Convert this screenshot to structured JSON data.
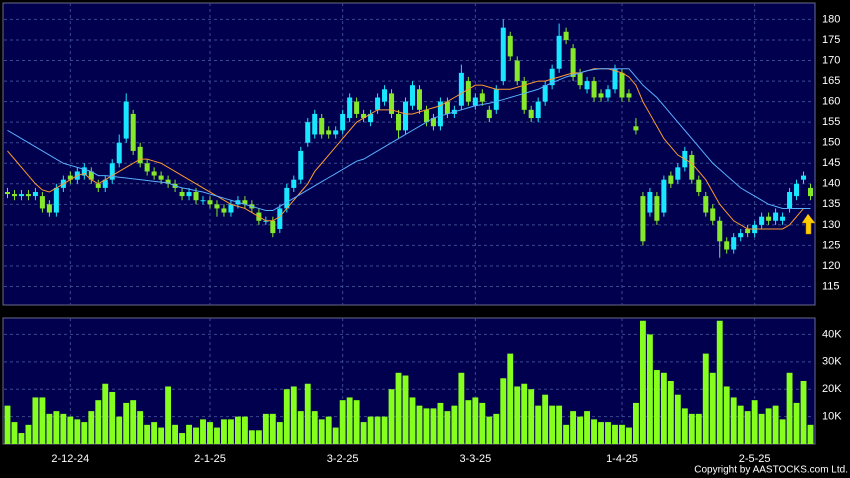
{
  "chart_data": [
    {
      "type": "candlestick",
      "open": [
        138,
        137.5,
        137,
        137.5,
        137,
        137,
        135,
        133,
        139,
        142,
        141,
        142,
        143,
        140,
        139,
        141,
        145,
        151,
        157,
        149,
        145,
        143,
        142,
        141,
        140,
        138,
        137,
        138,
        136,
        136,
        135,
        134,
        133,
        135,
        136,
        135,
        133,
        131,
        131,
        129,
        134,
        139,
        141,
        150,
        152,
        156,
        153,
        152,
        153,
        156,
        160,
        157,
        155,
        158,
        160,
        162,
        157,
        153,
        159,
        163,
        158,
        156,
        154,
        160,
        157,
        159,
        165,
        159,
        162,
        158,
        158,
        165,
        176,
        170,
        165,
        158,
        156,
        160,
        164,
        168,
        177,
        173,
        167,
        163,
        165,
        162,
        161,
        163,
        167,
        162,
        154,
        137,
        133,
        137,
        133,
        142,
        141,
        144,
        147,
        141,
        137,
        134,
        131,
        126,
        124,
        127,
        129,
        128,
        130,
        132,
        131,
        131,
        134,
        137,
        141,
        139
      ],
      "high": [
        139,
        138.5,
        138.5,
        138.5,
        139,
        138,
        136,
        140,
        142,
        143,
        144,
        145,
        144,
        141,
        142,
        146,
        152,
        162,
        158,
        150,
        146,
        144,
        143,
        142,
        141,
        139,
        139,
        139,
        137,
        137,
        136,
        135,
        136,
        137,
        137,
        136,
        134,
        132,
        132,
        135,
        140,
        142,
        149,
        156,
        158,
        157,
        154,
        154,
        158,
        162,
        161,
        158,
        158,
        162,
        164,
        163,
        158,
        161,
        165,
        164,
        159,
        157,
        161,
        161,
        159,
        169,
        166,
        162,
        163,
        159,
        164,
        180,
        177,
        171,
        166,
        159,
        161,
        165,
        169,
        179,
        178,
        174,
        168,
        166,
        166,
        163,
        164,
        169,
        168,
        163,
        156,
        138,
        139,
        138,
        142,
        143,
        145,
        149,
        148,
        142,
        138,
        135,
        132,
        127,
        128,
        129,
        130,
        131,
        133,
        133,
        134,
        133,
        139,
        141,
        143,
        140
      ],
      "low": [
        136.5,
        136,
        136,
        136,
        136,
        133,
        132,
        132,
        138,
        140,
        140,
        141,
        140,
        138,
        138,
        140,
        144,
        150,
        147,
        144,
        142,
        141,
        140,
        139,
        138,
        136,
        136,
        135,
        135,
        134,
        132,
        132,
        132,
        134,
        134,
        133,
        130,
        130,
        127,
        128,
        133,
        138,
        140,
        149,
        151,
        151,
        151,
        151,
        152,
        155,
        156,
        155,
        154,
        157,
        159,
        156,
        151,
        152,
        158,
        157,
        154,
        153,
        153,
        156,
        156,
        158,
        159,
        158,
        159,
        155,
        157,
        164,
        170,
        164,
        157,
        155,
        155,
        159,
        163,
        167,
        174,
        165,
        163,
        162,
        160,
        160,
        160,
        162,
        160,
        160,
        152,
        125,
        132,
        130,
        132,
        139,
        140,
        143,
        140,
        137,
        132,
        130,
        122,
        123,
        123,
        126,
        127,
        127,
        129,
        130,
        130,
        130,
        133,
        136,
        140,
        136
      ],
      "close": [
        137.5,
        137,
        137.5,
        137,
        138,
        134,
        133,
        139,
        141,
        141,
        143,
        144,
        141,
        139,
        141,
        145,
        150,
        160,
        148,
        145,
        143,
        142,
        141,
        140,
        139,
        137,
        138,
        136,
        136,
        135,
        134,
        133,
        135,
        136,
        135,
        134,
        131,
        131,
        128,
        134,
        139,
        141,
        148,
        155,
        157,
        152,
        152,
        153,
        157,
        161,
        157,
        156,
        157,
        161,
        163,
        157,
        153,
        160,
        164,
        158,
        155,
        154,
        160,
        157,
        158,
        167,
        160,
        161,
        160,
        156,
        163,
        178,
        171,
        165,
        158,
        156,
        160,
        164,
        168,
        176,
        175,
        166,
        164,
        165,
        161,
        161,
        163,
        168,
        161,
        161,
        153,
        126,
        138,
        131,
        141,
        140,
        144,
        148,
        141,
        138,
        133,
        131,
        126,
        124,
        127,
        128,
        128,
        130,
        132,
        131,
        133,
        132,
        138,
        140,
        142,
        137
      ],
      "up_color": "#19e6ff",
      "down_color": "#86e82a",
      "series": [
        {
          "color": "#ff9a2e",
          "values": [
            148,
            146,
            144,
            142,
            140,
            138.5,
            138,
            139,
            140,
            141,
            142,
            142.5,
            141,
            140,
            141,
            142,
            143,
            144,
            145,
            146,
            146,
            145.5,
            145,
            144,
            143,
            142,
            141,
            140,
            139,
            138,
            137,
            136,
            135,
            134.5,
            134,
            133,
            132,
            131,
            131,
            132,
            134,
            136,
            138,
            140,
            143,
            145,
            147,
            149,
            151,
            153,
            155,
            156,
            157,
            158,
            158,
            158,
            157.5,
            157,
            157,
            157.5,
            158,
            158.5,
            159,
            160,
            161,
            162,
            163,
            164,
            164,
            163.5,
            163,
            163,
            163,
            163.5,
            164,
            164.5,
            165,
            165,
            165.5,
            166,
            166.5,
            167,
            167,
            167.5,
            168,
            168,
            168,
            167.5,
            167,
            166,
            164,
            160,
            157,
            154,
            151,
            149,
            147,
            146,
            145,
            143,
            141,
            138,
            135,
            133,
            131,
            130,
            129,
            129,
            129,
            129,
            129,
            129,
            130,
            132,
            134,
            134
          ]
        },
        {
          "color": "#5aaeff",
          "values": [
            153,
            152,
            151,
            150,
            149,
            148,
            147,
            146,
            145,
            144.5,
            144,
            143.5,
            143,
            142,
            142,
            141.8,
            141.6,
            141.4,
            141.2,
            141,
            140.8,
            140.6,
            140.4,
            140.2,
            139.5,
            139,
            138.7,
            138.3,
            138,
            137.5,
            137,
            136.5,
            136,
            135.5,
            135,
            134.5,
            134,
            133.5,
            133.5,
            134.5,
            135.5,
            136.5,
            137.5,
            138.5,
            139.5,
            140.5,
            141.5,
            142.5,
            143.5,
            144.5,
            145.5,
            146,
            147,
            148,
            149,
            150,
            151,
            152,
            153,
            154,
            155,
            156,
            156.5,
            157,
            157.5,
            158,
            158.5,
            159,
            159.3,
            159.6,
            160,
            160.5,
            161,
            161.5,
            162,
            162.5,
            163,
            163.8,
            164.6,
            165.3,
            166,
            166.5,
            167,
            167.5,
            167.8,
            168,
            168,
            168,
            168,
            168,
            166,
            164,
            162.5,
            161,
            159,
            157,
            155,
            153,
            151,
            149,
            147,
            145,
            143.5,
            142,
            140.5,
            139,
            138,
            137,
            136,
            135,
            134.5,
            134,
            134,
            134,
            134,
            134
          ]
        }
      ],
      "ylim": [
        110.5,
        184
      ],
      "yticks": [
        115,
        120,
        125,
        130,
        135,
        140,
        145,
        150,
        155,
        160,
        165,
        170,
        175,
        180
      ],
      "grid": true
    },
    {
      "type": "bar",
      "categories": [
        null,
        null,
        null,
        null,
        null,
        null,
        null,
        null,
        null,
        "2-12-24",
        null,
        null,
        null,
        null,
        null,
        null,
        null,
        null,
        null,
        null,
        null,
        null,
        null,
        null,
        null,
        null,
        null,
        null,
        null,
        "2-1-25",
        null,
        null,
        null,
        null,
        null,
        null,
        null,
        null,
        null,
        null,
        null,
        null,
        null,
        null,
        null,
        null,
        null,
        null,
        "3-2-25",
        null,
        null,
        null,
        null,
        null,
        null,
        null,
        null,
        null,
        null,
        null,
        null,
        null,
        null,
        null,
        null,
        null,
        null,
        "3-3-25",
        null,
        null,
        null,
        null,
        null,
        null,
        null,
        null,
        null,
        null,
        null,
        null,
        null,
        null,
        null,
        null,
        null,
        null,
        null,
        null,
        "1-4-25",
        null,
        null,
        null,
        null,
        null,
        null,
        null,
        null,
        null,
        null,
        null,
        null,
        null,
        null,
        null,
        null,
        null,
        null,
        "2-5-25",
        null,
        null,
        null,
        null,
        null,
        null,
        null,
        null
      ],
      "values": [
        14000,
        8000,
        4000,
        7000,
        17000,
        17000,
        11000,
        12000,
        11000,
        10000,
        9000,
        8000,
        12000,
        16000,
        22000,
        19000,
        10000,
        15000,
        16000,
        12000,
        7000,
        8000,
        6000,
        21000,
        7000,
        4000,
        7000,
        6000,
        9000,
        8000,
        6000,
        9000,
        9000,
        10000,
        10000,
        5000,
        5000,
        11000,
        11000,
        8000,
        20000,
        21000,
        12000,
        22000,
        12000,
        9000,
        10000,
        6000,
        16000,
        17000,
        16000,
        8000,
        10000,
        10000,
        10000,
        20000,
        26000,
        25000,
        17000,
        14000,
        13000,
        13000,
        15000,
        12000,
        14000,
        26000,
        16000,
        17000,
        15000,
        10000,
        11000,
        24000,
        33000,
        21000,
        22000,
        20000,
        14000,
        18000,
        14000,
        14000,
        7000,
        12000,
        10000,
        12000,
        9000,
        8000,
        8000,
        7000,
        7000,
        6000,
        15000,
        45000,
        40000,
        27000,
        26000,
        23000,
        18000,
        13000,
        11000,
        11000,
        33000,
        26000,
        45000,
        21000,
        17000,
        14000,
        12000,
        16000,
        11000,
        13000,
        14000,
        9000,
        26000,
        15000,
        23000,
        7000
      ],
      "color": "#86ff1e",
      "ylim": [
        0,
        46000
      ],
      "yticks": [
        {
          "value": 10000,
          "label": "10K"
        },
        {
          "value": 20000,
          "label": "20K"
        },
        {
          "value": 30000,
          "label": "30K"
        },
        {
          "value": 40000,
          "label": "40K"
        }
      ],
      "grid": true,
      "copyright": "Copyright by AASTOCKS.com Ltd."
    }
  ]
}
